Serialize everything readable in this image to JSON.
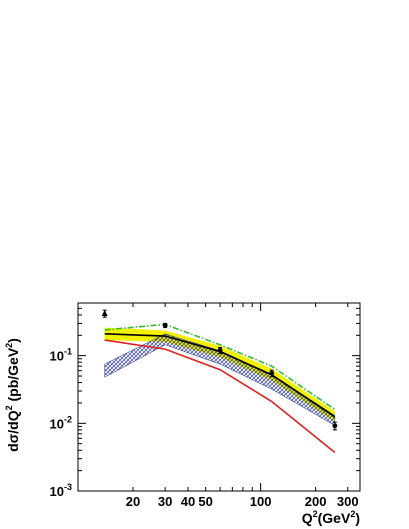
{
  "chart_data": {
    "type": "line",
    "title": "",
    "xlabel": "Q²(GeV²)",
    "ylabel": "dσ/dQ² (pb/GeV²)",
    "x_scale": "log",
    "y_scale": "log",
    "xlim": [
      10,
      350
    ],
    "ylim": [
      0.001,
      0.6
    ],
    "x_tick_labels": [
      "20",
      "30",
      "40",
      "50",
      "100",
      "200",
      "300"
    ],
    "y_tick_labels": [
      "10⁻¹",
      "10⁻²",
      "10⁻³"
    ],
    "grid": false,
    "legend": "none",
    "data_points": [
      {
        "x": 14,
        "y": 0.42,
        "err": 0.05,
        "marker": "triangle"
      },
      {
        "x": 30,
        "y": 0.28,
        "err": 0.02,
        "marker": "circle"
      },
      {
        "x": 60,
        "y": 0.12,
        "err": 0.012,
        "marker": "circle"
      },
      {
        "x": 115,
        "y": 0.055,
        "err": 0.006,
        "marker": "circle"
      },
      {
        "x": 255,
        "y": 0.0092,
        "err": 0.0012,
        "marker": "circle"
      }
    ],
    "series": [
      {
        "style": "dash-dot",
        "color": "#33bb33",
        "x": [
          14,
          30,
          60,
          115,
          255
        ],
        "y": [
          0.24,
          0.29,
          0.145,
          0.07,
          0.016
        ]
      },
      {
        "style": "solid",
        "color": "#000000",
        "x": [
          14,
          30,
          60,
          115,
          255
        ],
        "y": [
          0.21,
          0.195,
          0.115,
          0.052,
          0.0125
        ]
      },
      {
        "style": "solid",
        "color": "#dd2222",
        "x": [
          14,
          30,
          60,
          115,
          255
        ],
        "y": [
          0.17,
          0.125,
          0.062,
          0.021,
          0.0037
        ]
      }
    ],
    "bands": [
      {
        "fill": "yellow",
        "color": "#f2f200",
        "x": [
          14,
          30,
          60,
          115,
          255
        ],
        "low": [
          0.17,
          0.16,
          0.095,
          0.043,
          0.0105
        ],
        "high": [
          0.26,
          0.235,
          0.14,
          0.064,
          0.015
        ]
      },
      {
        "fill": "hatched",
        "color": "#1a2a9a",
        "x": [
          14,
          30,
          60,
          115,
          255
        ],
        "low": [
          0.048,
          0.145,
          0.075,
          0.032,
          0.0093
        ],
        "high": [
          0.075,
          0.21,
          0.118,
          0.053,
          0.013
        ]
      }
    ]
  }
}
